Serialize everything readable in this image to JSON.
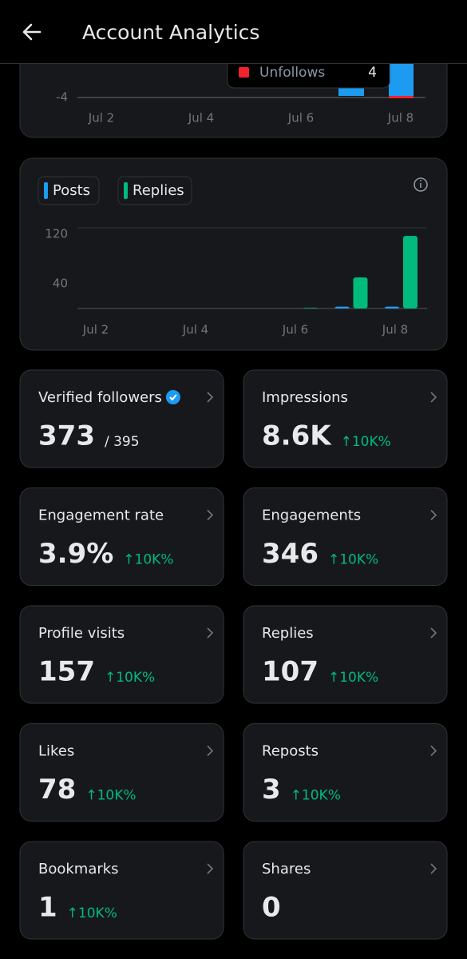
{
  "header": {
    "title": "Account Analytics"
  },
  "chart_data": [
    {
      "type": "bar",
      "categories": [
        "Jul 2",
        null,
        "Jul 4",
        null,
        "Jul 6",
        null,
        "Jul 8"
      ],
      "yticks": [
        -4
      ],
      "tooltip": {
        "label": "Unfollows",
        "value": 4,
        "color": "#f4212e"
      }
    },
    {
      "type": "bar",
      "categories": [
        "Jul 2",
        null,
        "Jul 4",
        null,
        "Jul 6",
        null,
        "Jul 8"
      ],
      "series": [
        {
          "name": "Posts",
          "color": "#1d9bf0",
          "values": [
            0,
            0,
            0,
            0,
            0,
            3,
            3
          ]
        },
        {
          "name": "Replies",
          "color": "#00ba7c",
          "values": [
            0,
            0,
            0,
            0,
            1,
            50,
            117
          ]
        }
      ],
      "ylim": [
        0,
        130
      ],
      "yticks": [
        40,
        120
      ]
    }
  ],
  "cards": [
    {
      "label": "Verified followers",
      "value": "373",
      "sub": "/ 395"
    },
    {
      "label": "Impressions",
      "value": "8.6K",
      "change": "↑10K%"
    },
    {
      "label": "Engagement rate",
      "value": "3.9%",
      "change": "↑10K%"
    },
    {
      "label": "Engagements",
      "value": "346",
      "change": "↑10K%"
    },
    {
      "label": "Profile visits",
      "value": "157",
      "change": "↑10K%"
    },
    {
      "label": "Replies",
      "value": "107",
      "change": "↑10K%"
    },
    {
      "label": "Likes",
      "value": "78",
      "change": "↑10K%"
    },
    {
      "label": "Reposts",
      "value": "3",
      "change": "↑10K%"
    },
    {
      "label": "Bookmarks",
      "value": "1",
      "change": "↑10K%"
    },
    {
      "label": "Shares",
      "value": "0"
    }
  ]
}
